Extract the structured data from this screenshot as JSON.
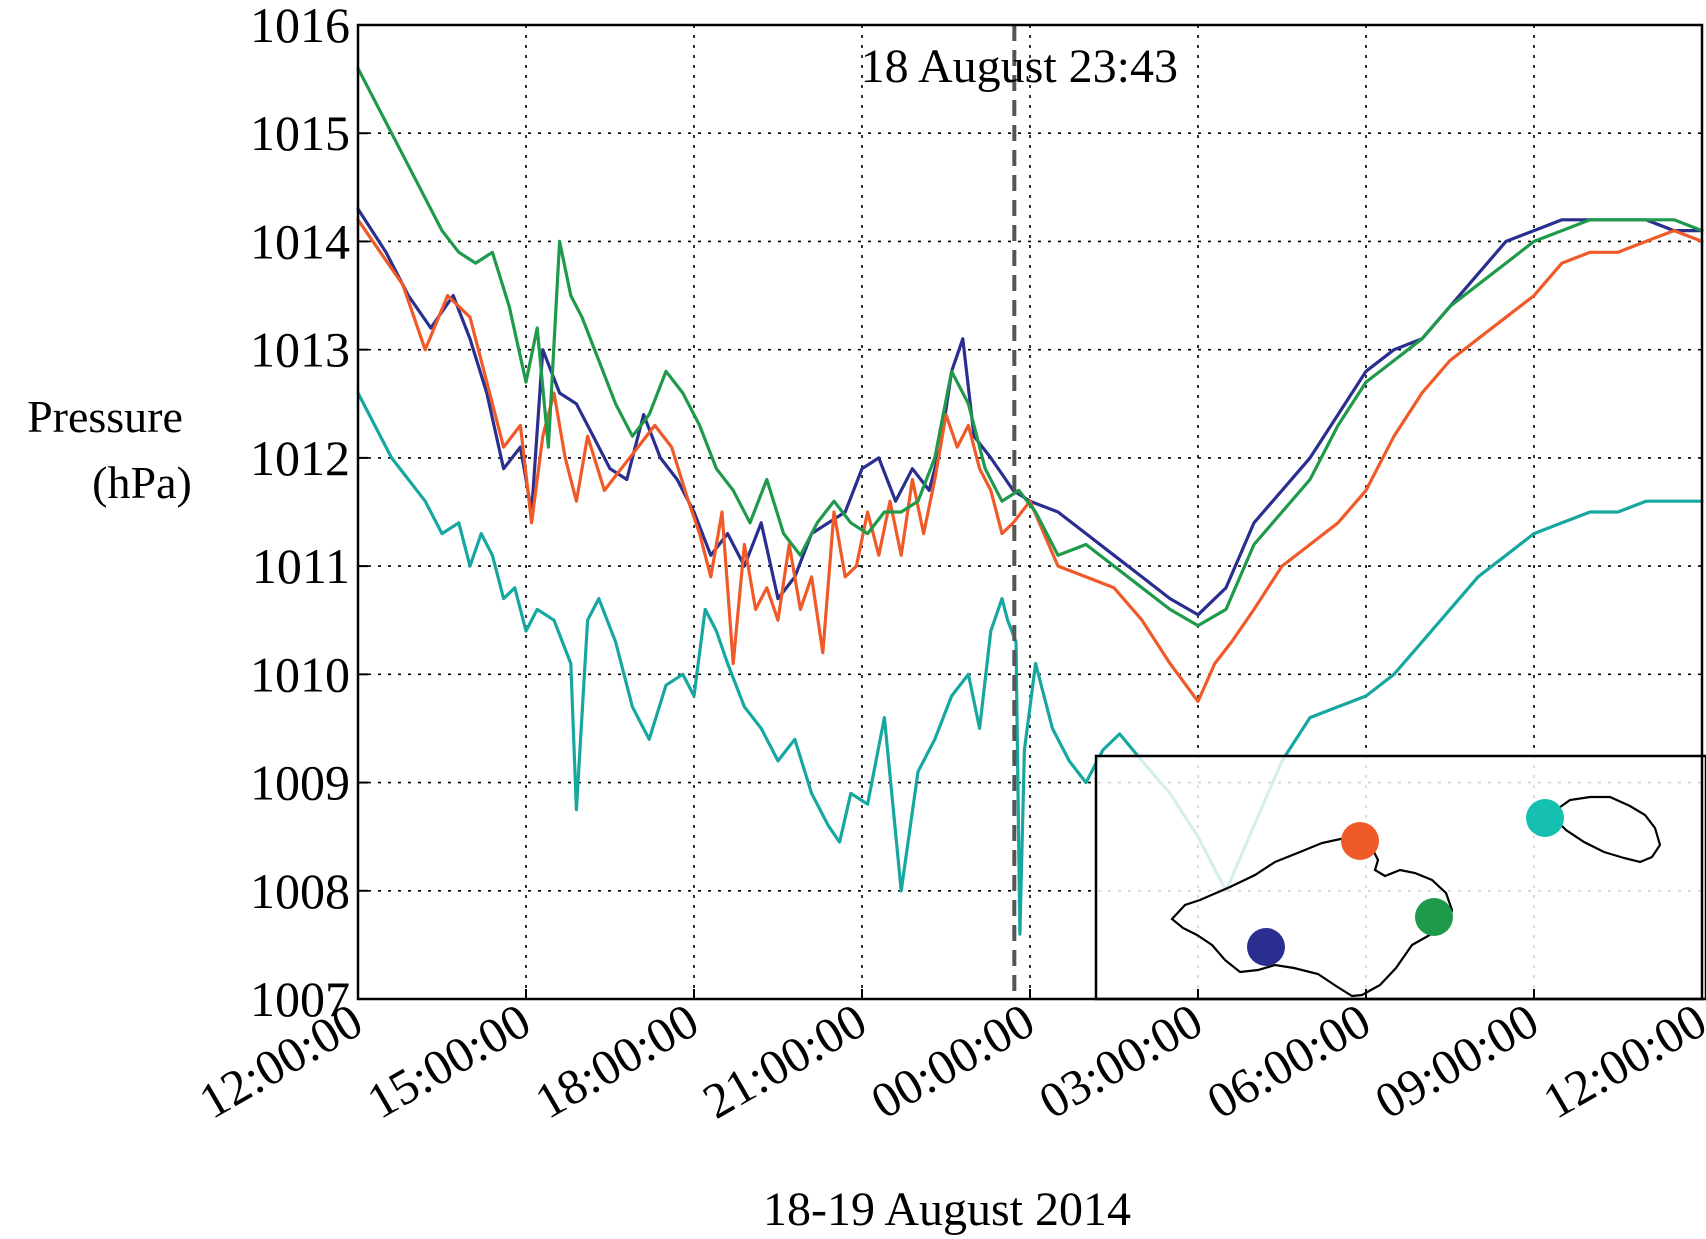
{
  "chart_data": {
    "type": "line",
    "xlabel": "18-19 August 2014",
    "ylabel_lines": [
      "Pressure",
      "(hPa)"
    ],
    "x_unit": "hours since 18 August 2014 12:00",
    "xlim": [
      0,
      24
    ],
    "ylim": [
      1007,
      1016
    ],
    "x_ticks": [
      0,
      3,
      6,
      9,
      12,
      15,
      18,
      21,
      24
    ],
    "x_tick_labels": [
      "12:00:00",
      "15:00:00",
      "18:00:00",
      "21:00:00",
      "00:00:00",
      "03:00:00",
      "06:00:00",
      "09:00:00",
      "12:00:00"
    ],
    "y_ticks": [
      1007,
      1008,
      1009,
      1010,
      1011,
      1012,
      1013,
      1014,
      1015,
      1016
    ],
    "y_tick_labels": [
      "1007",
      "1008",
      "1009",
      "1010",
      "1011",
      "1012",
      "1013",
      "1014",
      "1015",
      "1016"
    ],
    "grid": true,
    "event_marker": {
      "x": 11.72,
      "label": "18 August 23:43",
      "color": "#555555"
    },
    "series": [
      {
        "color": "#2a2f8f",
        "x": [
          0,
          0.5,
          0.9,
          1.3,
          1.7,
          2.0,
          2.3,
          2.6,
          2.9,
          3.1,
          3.3,
          3.6,
          3.9,
          4.2,
          4.5,
          4.8,
          5.1,
          5.4,
          5.7,
          6.0,
          6.3,
          6.6,
          6.9,
          7.2,
          7.5,
          7.8,
          8.1,
          8.4,
          8.7,
          9.0,
          9.3,
          9.6,
          9.9,
          10.2,
          10.4,
          10.6,
          10.8,
          11.0,
          11.3,
          11.7,
          12.0,
          12.5,
          13.0,
          13.5,
          14.0,
          14.5,
          15.0,
          15.5,
          16.0,
          16.5,
          17.0,
          17.5,
          18.0,
          18.5,
          19.0,
          19.5,
          20.0,
          20.5,
          21.0,
          21.5,
          22.0,
          22.5,
          23.0,
          23.5,
          24.0
        ],
        "y": [
          1014.3,
          1013.9,
          1013.5,
          1013.2,
          1013.5,
          1013.1,
          1012.6,
          1011.9,
          1012.1,
          1011.5,
          1013.0,
          1012.6,
          1012.5,
          1012.2,
          1011.9,
          1011.8,
          1012.4,
          1012.0,
          1011.8,
          1011.5,
          1011.1,
          1011.3,
          1011.0,
          1011.4,
          1010.7,
          1010.9,
          1011.3,
          1011.4,
          1011.5,
          1011.9,
          1012.0,
          1011.6,
          1011.9,
          1011.7,
          1012.1,
          1012.8,
          1013.1,
          1012.2,
          1012.0,
          1011.7,
          1011.6,
          1011.5,
          1011.3,
          1011.1,
          1010.9,
          1010.7,
          1010.55,
          1010.8,
          1011.4,
          1011.7,
          1012.0,
          1012.4,
          1012.8,
          1013.0,
          1013.1,
          1013.4,
          1013.7,
          1014.0,
          1014.1,
          1014.2,
          1014.2,
          1014.2,
          1014.2,
          1014.1,
          1014.1
        ]
      },
      {
        "color": "#f05a28",
        "x": [
          0,
          0.4,
          0.8,
          1.2,
          1.6,
          2.0,
          2.3,
          2.6,
          2.9,
          3.1,
          3.3,
          3.5,
          3.7,
          3.9,
          4.1,
          4.4,
          4.7,
          5.0,
          5.3,
          5.6,
          5.9,
          6.1,
          6.3,
          6.5,
          6.7,
          6.9,
          7.1,
          7.3,
          7.5,
          7.7,
          7.9,
          8.1,
          8.3,
          8.5,
          8.7,
          8.9,
          9.1,
          9.3,
          9.5,
          9.7,
          9.9,
          10.1,
          10.3,
          10.5,
          10.7,
          10.9,
          11.1,
          11.3,
          11.5,
          11.7,
          12.0,
          12.5,
          13.0,
          13.5,
          14.0,
          14.5,
          15.0,
          15.3,
          15.6,
          16.0,
          16.5,
          17.0,
          17.5,
          18.0,
          18.5,
          19.0,
          19.5,
          20.0,
          20.5,
          21.0,
          21.5,
          22.0,
          22.5,
          23.0,
          23.5,
          24.0
        ],
        "y": [
          1014.2,
          1013.9,
          1013.6,
          1013.0,
          1013.5,
          1013.3,
          1012.7,
          1012.1,
          1012.3,
          1011.4,
          1012.2,
          1012.6,
          1012.0,
          1011.6,
          1012.2,
          1011.7,
          1011.9,
          1012.1,
          1012.3,
          1012.1,
          1011.6,
          1011.3,
          1010.9,
          1011.5,
          1010.1,
          1011.2,
          1010.6,
          1010.8,
          1010.5,
          1011.2,
          1010.6,
          1010.9,
          1010.2,
          1011.5,
          1010.9,
          1011.0,
          1011.5,
          1011.1,
          1011.6,
          1011.1,
          1011.8,
          1011.3,
          1011.8,
          1012.4,
          1012.1,
          1012.3,
          1011.9,
          1011.7,
          1011.3,
          1011.4,
          1011.6,
          1011.0,
          1010.9,
          1010.8,
          1010.5,
          1010.1,
          1009.75,
          1010.1,
          1010.3,
          1010.6,
          1011.0,
          1011.2,
          1011.4,
          1011.7,
          1012.2,
          1012.6,
          1012.9,
          1013.1,
          1013.3,
          1013.5,
          1013.8,
          1013.9,
          1013.9,
          1014.0,
          1014.1,
          1014.0
        ]
      },
      {
        "color": "#1e9a4a",
        "x": [
          0,
          0.3,
          0.6,
          0.9,
          1.2,
          1.5,
          1.8,
          2.1,
          2.4,
          2.7,
          3.0,
          3.2,
          3.4,
          3.6,
          3.8,
          4.0,
          4.3,
          4.6,
          4.9,
          5.2,
          5.5,
          5.8,
          6.1,
          6.4,
          6.7,
          7.0,
          7.3,
          7.6,
          7.9,
          8.2,
          8.5,
          8.8,
          9.1,
          9.4,
          9.7,
          10.0,
          10.3,
          10.6,
          10.9,
          11.2,
          11.5,
          11.8,
          12.1,
          12.5,
          13.0,
          13.5,
          14.0,
          14.5,
          15.0,
          15.5,
          16.0,
          16.5,
          17.0,
          17.5,
          18.0,
          18.5,
          19.0,
          19.5,
          20.0,
          20.5,
          21.0,
          21.5,
          22.0,
          22.5,
          23.0,
          23.5,
          24.0
        ],
        "y": [
          1015.6,
          1015.3,
          1015.0,
          1014.7,
          1014.4,
          1014.1,
          1013.9,
          1013.8,
          1013.9,
          1013.4,
          1012.7,
          1013.2,
          1012.1,
          1014.0,
          1013.5,
          1013.3,
          1012.9,
          1012.5,
          1012.2,
          1012.4,
          1012.8,
          1012.6,
          1012.3,
          1011.9,
          1011.7,
          1011.4,
          1011.8,
          1011.3,
          1011.1,
          1011.4,
          1011.6,
          1011.4,
          1011.3,
          1011.5,
          1011.5,
          1011.6,
          1012.0,
          1012.8,
          1012.5,
          1011.9,
          1011.6,
          1011.7,
          1011.5,
          1011.1,
          1011.2,
          1011.0,
          1010.8,
          1010.6,
          1010.45,
          1010.6,
          1011.2,
          1011.5,
          1011.8,
          1012.3,
          1012.7,
          1012.9,
          1013.1,
          1013.4,
          1013.6,
          1013.8,
          1014.0,
          1014.1,
          1014.2,
          1014.2,
          1014.2,
          1014.2,
          1014.1
        ]
      },
      {
        "color": "#16a8a0",
        "x": [
          0,
          0.3,
          0.6,
          0.9,
          1.2,
          1.5,
          1.8,
          2.0,
          2.2,
          2.4,
          2.6,
          2.8,
          3.0,
          3.2,
          3.5,
          3.8,
          3.9,
          4.1,
          4.3,
          4.6,
          4.9,
          5.2,
          5.5,
          5.8,
          6.0,
          6.2,
          6.4,
          6.6,
          6.9,
          7.2,
          7.5,
          7.8,
          8.1,
          8.4,
          8.6,
          8.8,
          9.1,
          9.4,
          9.7,
          10.0,
          10.3,
          10.6,
          10.9,
          11.1,
          11.3,
          11.5,
          11.6,
          11.75,
          11.82,
          11.9,
          12.1,
          12.4,
          12.7,
          13.0,
          13.3,
          13.6,
          14.0,
          14.5,
          15.0,
          15.5,
          16.0,
          16.5,
          17.0,
          17.5,
          18.0,
          18.5,
          19.0,
          19.5,
          20.0,
          20.5,
          21.0,
          21.5,
          22.0,
          22.5,
          23.0,
          23.5,
          24.0
        ],
        "y": [
          1012.6,
          1012.3,
          1012.0,
          1011.8,
          1011.6,
          1011.3,
          1011.4,
          1011.0,
          1011.3,
          1011.1,
          1010.7,
          1010.8,
          1010.4,
          1010.6,
          1010.5,
          1010.1,
          1008.75,
          1010.5,
          1010.7,
          1010.3,
          1009.7,
          1009.4,
          1009.9,
          1010.0,
          1009.8,
          1010.6,
          1010.4,
          1010.1,
          1009.7,
          1009.5,
          1009.2,
          1009.4,
          1008.9,
          1008.6,
          1008.45,
          1008.9,
          1008.8,
          1009.6,
          1008.0,
          1009.1,
          1009.4,
          1009.8,
          1010.0,
          1009.5,
          1010.4,
          1010.7,
          1010.5,
          1010.3,
          1007.6,
          1009.3,
          1010.1,
          1009.5,
          1009.2,
          1009.0,
          1009.3,
          1009.45,
          1009.2,
          1008.9,
          1008.5,
          1008.0,
          1008.6,
          1009.2,
          1009.6,
          1009.7,
          1009.8,
          1010.0,
          1010.3,
          1010.6,
          1010.9,
          1011.1,
          1011.3,
          1011.4,
          1011.5,
          1011.5,
          1011.6,
          1011.6,
          1011.6
        ]
      }
    ],
    "inset_map": {
      "markers": [
        {
          "color": "#2a2f8f"
        },
        {
          "color": "#f05a28"
        },
        {
          "color": "#1e9a4a"
        },
        {
          "color": "#16c0b0"
        }
      ]
    }
  }
}
